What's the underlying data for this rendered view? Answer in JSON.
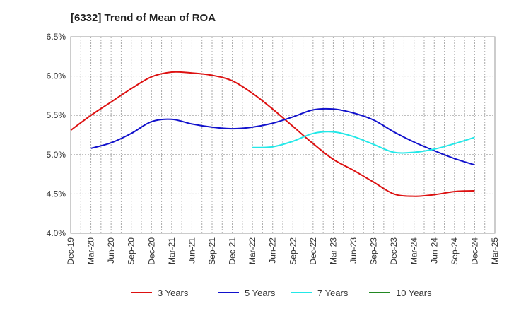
{
  "chart_data": {
    "type": "line",
    "title": "[6332]  Trend of Mean of ROA",
    "xlabel": "",
    "ylabel": "",
    "categories": [
      "Dec-19",
      "Mar-20",
      "Jun-20",
      "Sep-20",
      "Dec-20",
      "Mar-21",
      "Jun-21",
      "Sep-21",
      "Dec-21",
      "Mar-22",
      "Jun-22",
      "Sep-22",
      "Dec-22",
      "Mar-23",
      "Jun-23",
      "Sep-23",
      "Dec-23",
      "Mar-24",
      "Jun-24",
      "Sep-24",
      "Dec-24",
      "Mar-25"
    ],
    "ylim": [
      4.0,
      6.5
    ],
    "yticks": [
      4.0,
      4.5,
      5.0,
      5.5,
      6.0,
      6.5
    ],
    "ytick_labels": [
      "4.0%",
      "4.5%",
      "5.0%",
      "5.5%",
      "6.0%",
      "6.5%"
    ],
    "grid": true,
    "legend_position": "bottom",
    "series": [
      {
        "name": "3 Years",
        "color": "#dd1111",
        "values": [
          5.31,
          5.5,
          5.67,
          5.84,
          5.99,
          6.05,
          6.04,
          6.01,
          5.94,
          5.78,
          5.58,
          5.36,
          5.14,
          4.94,
          4.8,
          4.65,
          4.5,
          4.47,
          4.49,
          4.53,
          4.54,
          null
        ]
      },
      {
        "name": "5 Years",
        "color": "#1111cc",
        "values": [
          null,
          5.08,
          5.15,
          5.27,
          5.42,
          5.45,
          5.39,
          5.35,
          5.33,
          5.35,
          5.4,
          5.48,
          5.57,
          5.58,
          5.53,
          5.44,
          5.29,
          5.16,
          5.05,
          4.95,
          4.87,
          null
        ]
      },
      {
        "name": "7 Years",
        "color": "#22e8e8",
        "values": [
          null,
          null,
          null,
          null,
          null,
          null,
          null,
          null,
          null,
          5.09,
          5.1,
          5.17,
          5.27,
          5.29,
          5.23,
          5.13,
          5.03,
          5.03,
          5.07,
          5.14,
          5.22,
          null
        ]
      },
      {
        "name": "10 Years",
        "color": "#228822",
        "values": [
          null,
          null,
          null,
          null,
          null,
          null,
          null,
          null,
          null,
          null,
          null,
          null,
          null,
          null,
          null,
          null,
          null,
          null,
          null,
          null,
          null,
          null
        ]
      }
    ]
  }
}
